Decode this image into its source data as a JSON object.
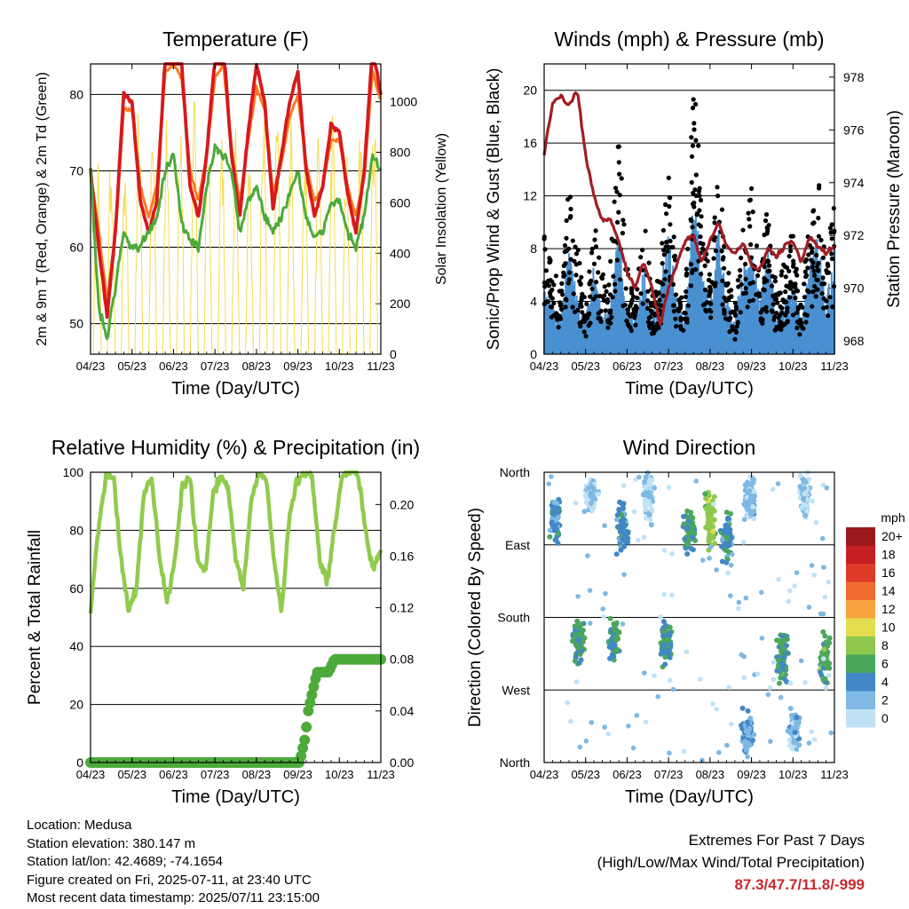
{
  "chart_data": [
    {
      "type": "line",
      "title": "Temperature (F)",
      "xlabel": "Time (Day/UTC)",
      "ylabel": "2m & 9m T (Red, Orange) & 2m Td (Green)",
      "y2label": "Solar Insolation (Yellow)",
      "x_ticks": [
        "04/23",
        "05/23",
        "06/23",
        "07/23",
        "08/23",
        "09/23",
        "10/23",
        "11/23"
      ],
      "ylim": [
        46,
        84
      ],
      "y_ticks": [
        50,
        60,
        70,
        80
      ],
      "y2lim": [
        0,
        1150
      ],
      "y2_ticks": [
        0,
        200,
        400,
        600,
        800,
        1000
      ],
      "grid": "horizontal",
      "series": [
        {
          "color": "#d7191c",
          "values": [
            70,
            60,
            51,
            62,
            80,
            79,
            66,
            62,
            66,
            85,
            87,
            84,
            68,
            64,
            72,
            85,
            87,
            72,
            64,
            75,
            84,
            79,
            65,
            72,
            79,
            83,
            70,
            64,
            68,
            76,
            75,
            67,
            62,
            70,
            86,
            80
          ]
        },
        {
          "color": "#fb7a22",
          "values": [
            70,
            62,
            53,
            62,
            78,
            78,
            68,
            64,
            68,
            83,
            84,
            82,
            70,
            66,
            72,
            82,
            84,
            73,
            66,
            74,
            81,
            78,
            67,
            71,
            77,
            80,
            71,
            66,
            68,
            74,
            74,
            68,
            64,
            69,
            83,
            79
          ]
        },
        {
          "color": "#4daa3a",
          "values": [
            70,
            52,
            48,
            55,
            62,
            60,
            60,
            62,
            64,
            70,
            72,
            63,
            61,
            60,
            68,
            73,
            72,
            70,
            62,
            66,
            68,
            64,
            62,
            64,
            67,
            70,
            64,
            61,
            62,
            66,
            66,
            62,
            60,
            64,
            72,
            70
          ]
        },
        {
          "color": "#f5dc50",
          "peaks": [
            880,
            900,
            800,
            1050,
            1000,
            950,
            1100,
            1050,
            1000,
            980,
            900,
            850,
            1050,
            1050,
            980,
            900,
            950,
            1000,
            850,
            1000,
            1100
          ]
        }
      ]
    },
    {
      "type": "scatter",
      "title": "Winds (mph) & Pressure (mb)",
      "xlabel": "Time (Day/UTC)",
      "ylabel": "Sonic/Prop Wind & Gust (Blue, Black)",
      "y2label": "Station Pressure (Maroon)",
      "x_ticks": [
        "04/23",
        "05/23",
        "06/23",
        "07/23",
        "08/23",
        "09/23",
        "10/23",
        "11/23"
      ],
      "ylim": [
        0,
        22
      ],
      "y_ticks": [
        0,
        4,
        8,
        12,
        16,
        20
      ],
      "y2lim": [
        967.5,
        978.5
      ],
      "y2_ticks": [
        968,
        970,
        972,
        974,
        976,
        978
      ],
      "grid": "horizontal",
      "series": [
        {
          "color": "#4a90d0",
          "values": [
            4,
            3,
            2,
            6,
            3,
            2,
            5,
            2,
            3,
            7,
            3,
            2,
            5,
            2,
            4,
            7,
            3,
            2,
            9,
            5,
            3,
            7,
            3,
            2,
            5,
            6,
            3,
            6,
            2,
            3,
            4,
            2,
            5,
            7,
            3,
            6
          ]
        },
        {
          "color": "#000000",
          "values": [
            8,
            6,
            4,
            11,
            7,
            3,
            9,
            5,
            6,
            14,
            6,
            3,
            9,
            4,
            6,
            12,
            5,
            3,
            18,
            10,
            5,
            12,
            6,
            3,
            9,
            11,
            5,
            10,
            4,
            6,
            8,
            3,
            9,
            13,
            6,
            10
          ]
        },
        {
          "color": "#a01e23",
          "values": [
            975.1,
            977.0,
            977.3,
            976.9,
            977.5,
            975.0,
            973.5,
            972.6,
            972.6,
            971.8,
            970.6,
            970.0,
            971.0,
            970.0,
            968.6,
            970.0,
            970.9,
            971.8,
            972.0,
            971.0,
            971.8,
            972.5,
            971.6,
            971.3,
            971.7,
            970.9,
            970.7,
            971.5,
            971.2,
            971.6,
            971.8,
            971.0,
            971.9,
            971.6,
            971.3,
            971.6
          ]
        }
      ]
    },
    {
      "type": "line",
      "title": "Relative Humidity (%) & Precipitation (in)",
      "xlabel": "Time (Day/UTC)",
      "ylabel": "Percent & Total Rainfall",
      "x_ticks": [
        "04/23",
        "05/23",
        "06/23",
        "07/23",
        "08/23",
        "09/23",
        "10/23",
        "11/23"
      ],
      "ylim": [
        0,
        100
      ],
      "y_ticks": [
        0,
        20,
        40,
        60,
        80,
        100
      ],
      "y2lim": [
        0,
        0.225
      ],
      "y2_ticks": [
        "0.00",
        "0.04",
        "0.08",
        "0.12",
        "0.16",
        "0.20"
      ],
      "grid": "horizontal",
      "series": [
        {
          "color": "#8fcb4c",
          "values": [
            52,
            80,
            98,
            99,
            70,
            52,
            60,
            93,
            98,
            72,
            55,
            68,
            95,
            99,
            70,
            65,
            92,
            99,
            95,
            70,
            60,
            90,
            99,
            98,
            70,
            52,
            84,
            97,
            99,
            99,
            70,
            62,
            82,
            100,
            100,
            100,
            80,
            66,
            74
          ]
        },
        {
          "color": "#4daa3a",
          "precip": [
            [
              0,
              0.0
            ],
            [
              0.72,
              0.0
            ],
            [
              0.74,
              0.02
            ],
            [
              0.75,
              0.04
            ],
            [
              0.76,
              0.05
            ],
            [
              0.78,
              0.07
            ],
            [
              0.82,
              0.07
            ],
            [
              0.84,
              0.08
            ],
            [
              1.0,
              0.08
            ]
          ]
        }
      ]
    },
    {
      "type": "scatter",
      "title": "Wind Direction",
      "xlabel": "Time (Day/UTC)",
      "ylabel": "Direction (Colored By Speed)",
      "x_ticks": [
        "04/23",
        "05/23",
        "06/23",
        "07/23",
        "08/23",
        "09/23",
        "10/23",
        "11/23"
      ],
      "y_ticks": [
        "North",
        "West",
        "South",
        "East",
        "North"
      ],
      "grid": "horizontal",
      "legend": {
        "title": "mph",
        "labels": [
          "20+",
          "18",
          "16",
          "14",
          "12",
          "10",
          "8",
          "6",
          "4",
          "2",
          "0"
        ],
        "colors": [
          "#99191c",
          "#c42024",
          "#de3a27",
          "#f06b2f",
          "#f7a440",
          "#e4de4e",
          "#8fc84e",
          "#4aa75b",
          "#4287c6",
          "#7eb8e3",
          "#bfe2f6"
        ]
      },
      "clusters": [
        {
          "x": 0.04,
          "dir": 300,
          "spread": 40,
          "speed": 4
        },
        {
          "x": 0.12,
          "dir": 150,
          "spread": 35,
          "speed": 5
        },
        {
          "x": 0.16,
          "dir": 330,
          "spread": 30,
          "speed": 1
        },
        {
          "x": 0.27,
          "dir": 290,
          "spread": 40,
          "speed": 4
        },
        {
          "x": 0.24,
          "dir": 150,
          "spread": 35,
          "speed": 5
        },
        {
          "x": 0.36,
          "dir": 330,
          "spread": 40,
          "speed": 1
        },
        {
          "x": 0.42,
          "dir": 150,
          "spread": 40,
          "speed": 5
        },
        {
          "x": 0.5,
          "dir": 290,
          "spread": 35,
          "speed": 5
        },
        {
          "x": 0.57,
          "dir": 300,
          "spread": 45,
          "speed": 8
        },
        {
          "x": 0.63,
          "dir": 280,
          "spread": 40,
          "speed": 4
        },
        {
          "x": 0.71,
          "dir": 330,
          "spread": 40,
          "speed": 2
        },
        {
          "x": 0.7,
          "dir": 40,
          "spread": 40,
          "speed": 3
        },
        {
          "x": 0.82,
          "dir": 130,
          "spread": 40,
          "speed": 5
        },
        {
          "x": 0.9,
          "dir": 330,
          "spread": 35,
          "speed": 1
        },
        {
          "x": 0.86,
          "dir": 40,
          "spread": 35,
          "speed": 2
        },
        {
          "x": 0.97,
          "dir": 130,
          "spread": 40,
          "speed": 6
        }
      ]
    }
  ],
  "info": {
    "location": "Location: Medusa",
    "elevation": "Station elevation: 380.147 m",
    "latlon": "Station lat/lon: 42.4689; -74.1654",
    "created": "Figure created on Fri, 2025-07-11, at 23:40 UTC",
    "recent": "Most recent data timestamp: 2025/07/11 23:15:00"
  },
  "extremes": {
    "title": "Extremes For Past 7 Days",
    "subtitle": "(High/Low/Max Wind/Total Precipitation)",
    "values": "87.3/47.7/11.8/-999"
  }
}
